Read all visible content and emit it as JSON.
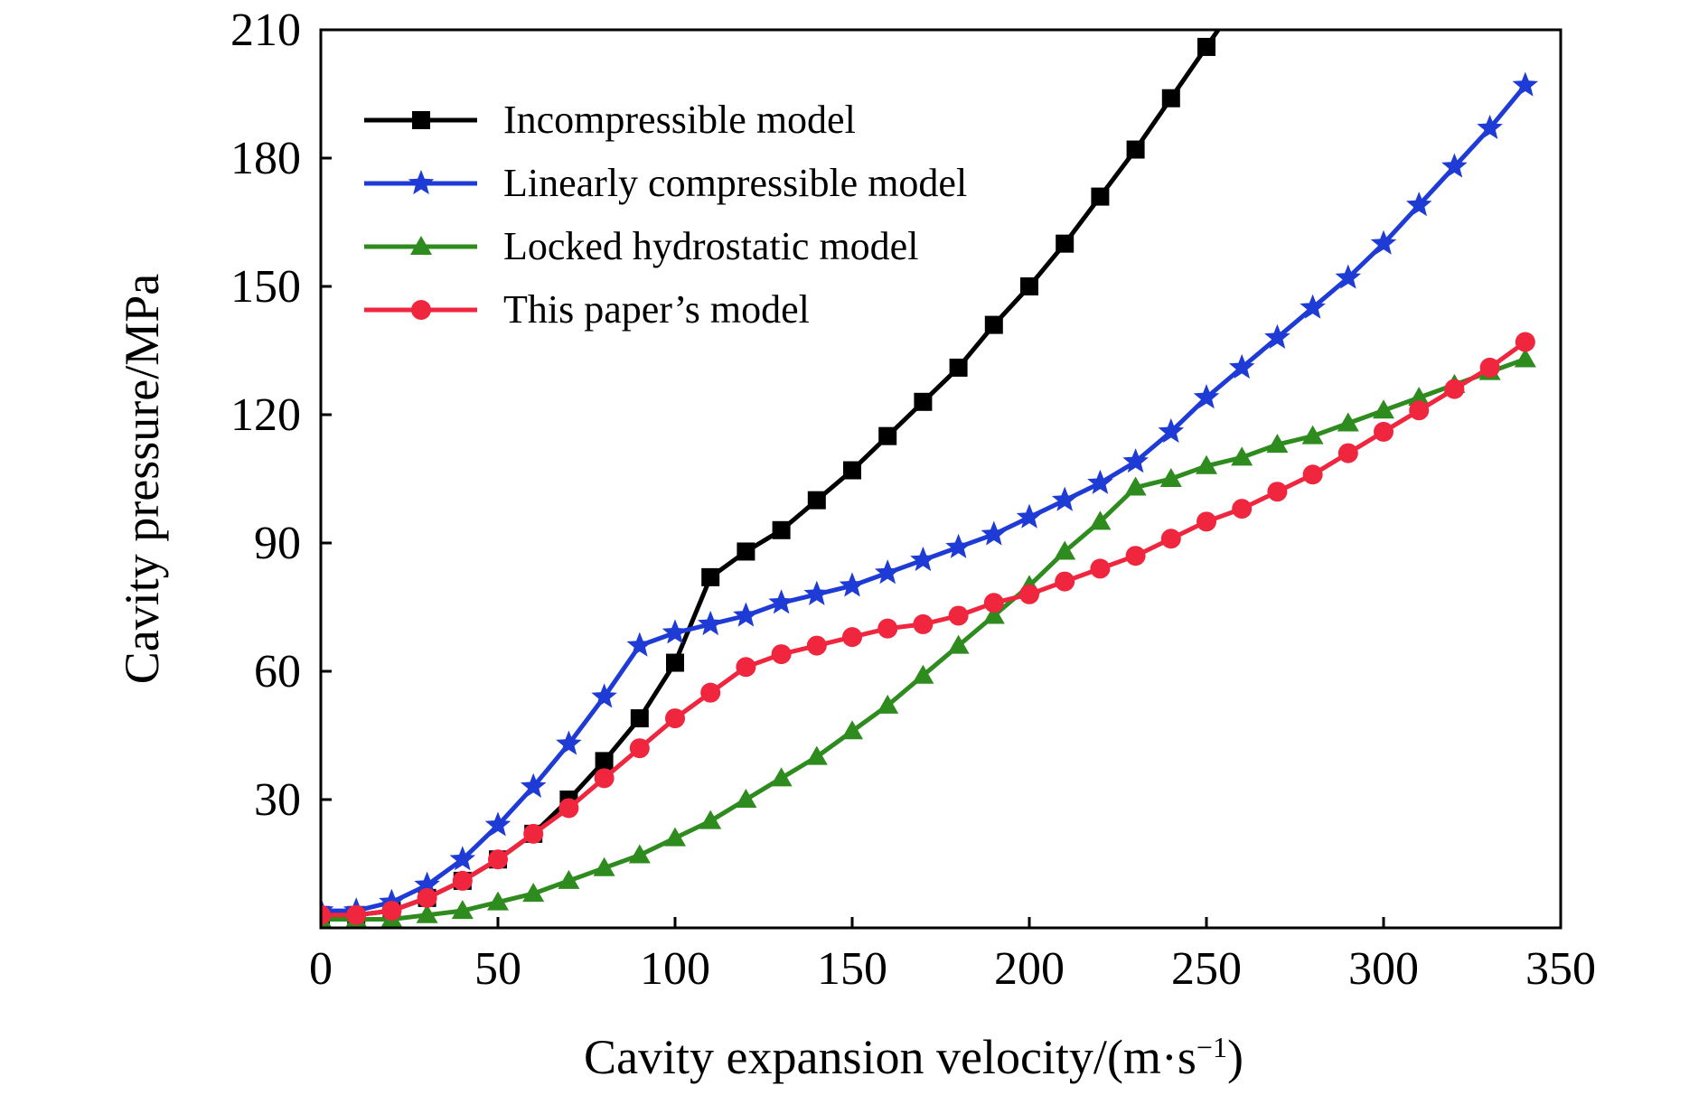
{
  "chart_data": {
    "type": "line",
    "xlabel": "Cavity expansion velocity/(m·s",
    "xlabel_unit_superscript": "−1",
    "xlabel_close": ")",
    "ylabel": "Cavity pressure/MPa",
    "xlim": [
      0,
      350
    ],
    "ylim": [
      0,
      210
    ],
    "x_ticks": [
      0,
      50,
      100,
      150,
      200,
      250,
      300,
      350
    ],
    "y_ticks": [
      30,
      60,
      90,
      120,
      150,
      180,
      210
    ],
    "grid": false,
    "legend_position": "top-left",
    "series": [
      {
        "name": "Incompressible model",
        "color": "#000000",
        "marker": "square",
        "x": [
          0,
          10,
          20,
          30,
          40,
          50,
          60,
          70,
          80,
          90,
          100,
          110,
          120,
          130,
          140,
          150,
          160,
          170,
          180,
          190,
          200,
          210,
          220,
          230,
          240,
          250,
          260
        ],
        "y": [
          3,
          3,
          4,
          7,
          11,
          16,
          22,
          30,
          39,
          49,
          62,
          82,
          88,
          93,
          100,
          107,
          115,
          123,
          131,
          141,
          150,
          160,
          171,
          182,
          194,
          206,
          218
        ]
      },
      {
        "name": "Linearly compressible model",
        "color": "#1f3bd6",
        "marker": "star",
        "x": [
          0,
          10,
          20,
          30,
          40,
          50,
          60,
          70,
          80,
          90,
          100,
          110,
          120,
          130,
          140,
          150,
          160,
          170,
          180,
          190,
          200,
          210,
          220,
          230,
          240,
          250,
          260,
          270,
          280,
          290,
          300,
          310,
          320,
          330,
          340
        ],
        "y": [
          4,
          4,
          6,
          10,
          16,
          24,
          33,
          43,
          54,
          66,
          69,
          71,
          73,
          76,
          78,
          80,
          83,
          86,
          89,
          92,
          96,
          100,
          104,
          109,
          116,
          124,
          131,
          138,
          145,
          152,
          160,
          169,
          178,
          187,
          197
        ]
      },
      {
        "name": "Locked hydrostatic model",
        "color": "#2e8b1e",
        "marker": "triangle",
        "x": [
          0,
          10,
          20,
          30,
          40,
          50,
          60,
          70,
          80,
          90,
          100,
          110,
          120,
          130,
          140,
          150,
          160,
          170,
          180,
          190,
          200,
          210,
          220,
          230,
          240,
          250,
          260,
          270,
          280,
          290,
          300,
          310,
          320,
          330,
          340
        ],
        "y": [
          2,
          2,
          2,
          3,
          4,
          6,
          8,
          11,
          14,
          17,
          21,
          25,
          30,
          35,
          40,
          46,
          52,
          59,
          66,
          73,
          80,
          88,
          95,
          103,
          105,
          108,
          110,
          113,
          115,
          118,
          121,
          124,
          127,
          130,
          133
        ]
      },
      {
        "name": "This paper’s model",
        "color": "#f0253e",
        "marker": "circle",
        "x": [
          0,
          10,
          20,
          30,
          40,
          50,
          60,
          70,
          80,
          90,
          100,
          110,
          120,
          130,
          140,
          150,
          160,
          170,
          180,
          190,
          200,
          210,
          220,
          230,
          240,
          250,
          260,
          270,
          280,
          290,
          300,
          310,
          320,
          330,
          340
        ],
        "y": [
          3,
          3,
          4,
          7,
          11,
          16,
          22,
          28,
          35,
          42,
          49,
          55,
          61,
          64,
          66,
          68,
          70,
          71,
          73,
          76,
          78,
          81,
          84,
          87,
          91,
          95,
          98,
          102,
          106,
          111,
          116,
          121,
          126,
          131,
          137
        ]
      }
    ]
  }
}
